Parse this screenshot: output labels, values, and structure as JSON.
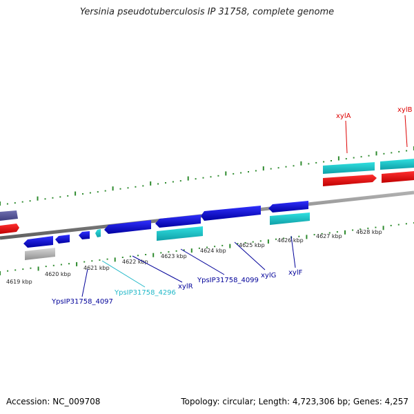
{
  "title": "Yersinia pseudotuberculosis IP 31758, complete genome",
  "footer": {
    "accession": "Accession: NC_009708",
    "topology": "Topology: circular; Length: 4,723,306 bp; Genes: 4,257"
  },
  "colors": {
    "forward_cds": "#ff0000",
    "reverse_cds": "#0000ee",
    "rna_like": "#1ec8c8",
    "pseudo": "#c0c0c0",
    "other": "#55559a",
    "backbone": "#808080",
    "tick": "#2e8b2e"
  },
  "scale": {
    "tick_labels": [
      "4619 kbp",
      "4620 kbp",
      "4621 kbp",
      "4622 kbp",
      "4623 kbp",
      "4624 kbp",
      "4625 kbp",
      "4626 kbp",
      "4627 kbp",
      "4628 kbp"
    ]
  },
  "gene_labels": [
    {
      "id": "xylA",
      "text": "xylA",
      "color": "#dd0000"
    },
    {
      "id": "xylB",
      "text": "xylB",
      "color": "#dd0000"
    },
    {
      "id": "xylR",
      "text": "xylR",
      "color": "#000099"
    },
    {
      "id": "xylG",
      "text": "xylG",
      "color": "#000099"
    },
    {
      "id": "xylF",
      "text": "xylF",
      "color": "#000099"
    },
    {
      "id": "ypsIP31758_4099",
      "text": "YpsIP31758_4099",
      "color": "#000099"
    },
    {
      "id": "ypsIP31758_4097",
      "text": "YpsIP31758_4097",
      "color": "#000099"
    },
    {
      "id": "ypsIP31758_4296",
      "text": "YpsIP31758_4296",
      "color": "#20b8c8"
    }
  ]
}
